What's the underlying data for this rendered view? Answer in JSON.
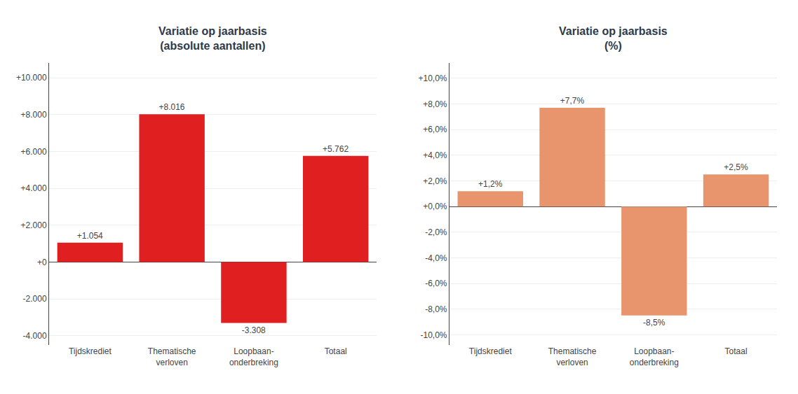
{
  "chart_data": [
    {
      "type": "bar",
      "title": "Variatie op jaarbasis\n(absolute aantallen)",
      "categories": [
        "Tijdskrediet",
        "Thematische\nverloven",
        "Loopbaan-\nonderbreking",
        "Totaal"
      ],
      "values": [
        1054,
        8016,
        -3308,
        5762
      ],
      "value_labels": [
        "+1.054",
        "+8.016",
        "-3.308",
        "+5.762"
      ],
      "data_labels": true,
      "color": "#e02020",
      "ylim": [
        -4500,
        10800
      ],
      "yticks": [
        {
          "value": -4000,
          "label": "-4.000"
        },
        {
          "value": -2000,
          "label": "-2.000"
        },
        {
          "value": 0,
          "label": "+0"
        },
        {
          "value": 2000,
          "label": "+2.000"
        },
        {
          "value": 4000,
          "label": "+4.000"
        },
        {
          "value": 6000,
          "label": "+6.000"
        },
        {
          "value": 8000,
          "label": "+8.000"
        },
        {
          "value": 10000,
          "label": "+10.000"
        }
      ],
      "grid": true
    },
    {
      "type": "bar",
      "title": "Variatie op jaarbasis\n(%)",
      "categories": [
        "Tijdskrediet",
        "Thematische\nverloven",
        "Loopbaan-\nonderbreking",
        "Totaal"
      ],
      "values": [
        1.2,
        7.7,
        -8.5,
        2.5
      ],
      "value_labels": [
        "+1,2%",
        "+7,7%",
        "-8,5%",
        "+2,5%"
      ],
      "data_labels": true,
      "color": "#e8956d",
      "ylim": [
        -10.8,
        11.2
      ],
      "yticks": [
        {
          "value": -10.0,
          "label": "-10,0%"
        },
        {
          "value": -8.0,
          "label": "-8,0%"
        },
        {
          "value": -6.0,
          "label": "-6,0%"
        },
        {
          "value": -4.0,
          "label": "-4,0%"
        },
        {
          "value": -2.0,
          "label": "-2,0%"
        },
        {
          "value": 0.0,
          "label": "+0,0%"
        },
        {
          "value": 2.0,
          "label": "+2,0%"
        },
        {
          "value": 4.0,
          "label": "+4,0%"
        },
        {
          "value": 6.0,
          "label": "+6,0%"
        },
        {
          "value": 8.0,
          "label": "+8,0%"
        },
        {
          "value": 10.0,
          "label": "+10,0%"
        }
      ],
      "grid": true
    }
  ]
}
